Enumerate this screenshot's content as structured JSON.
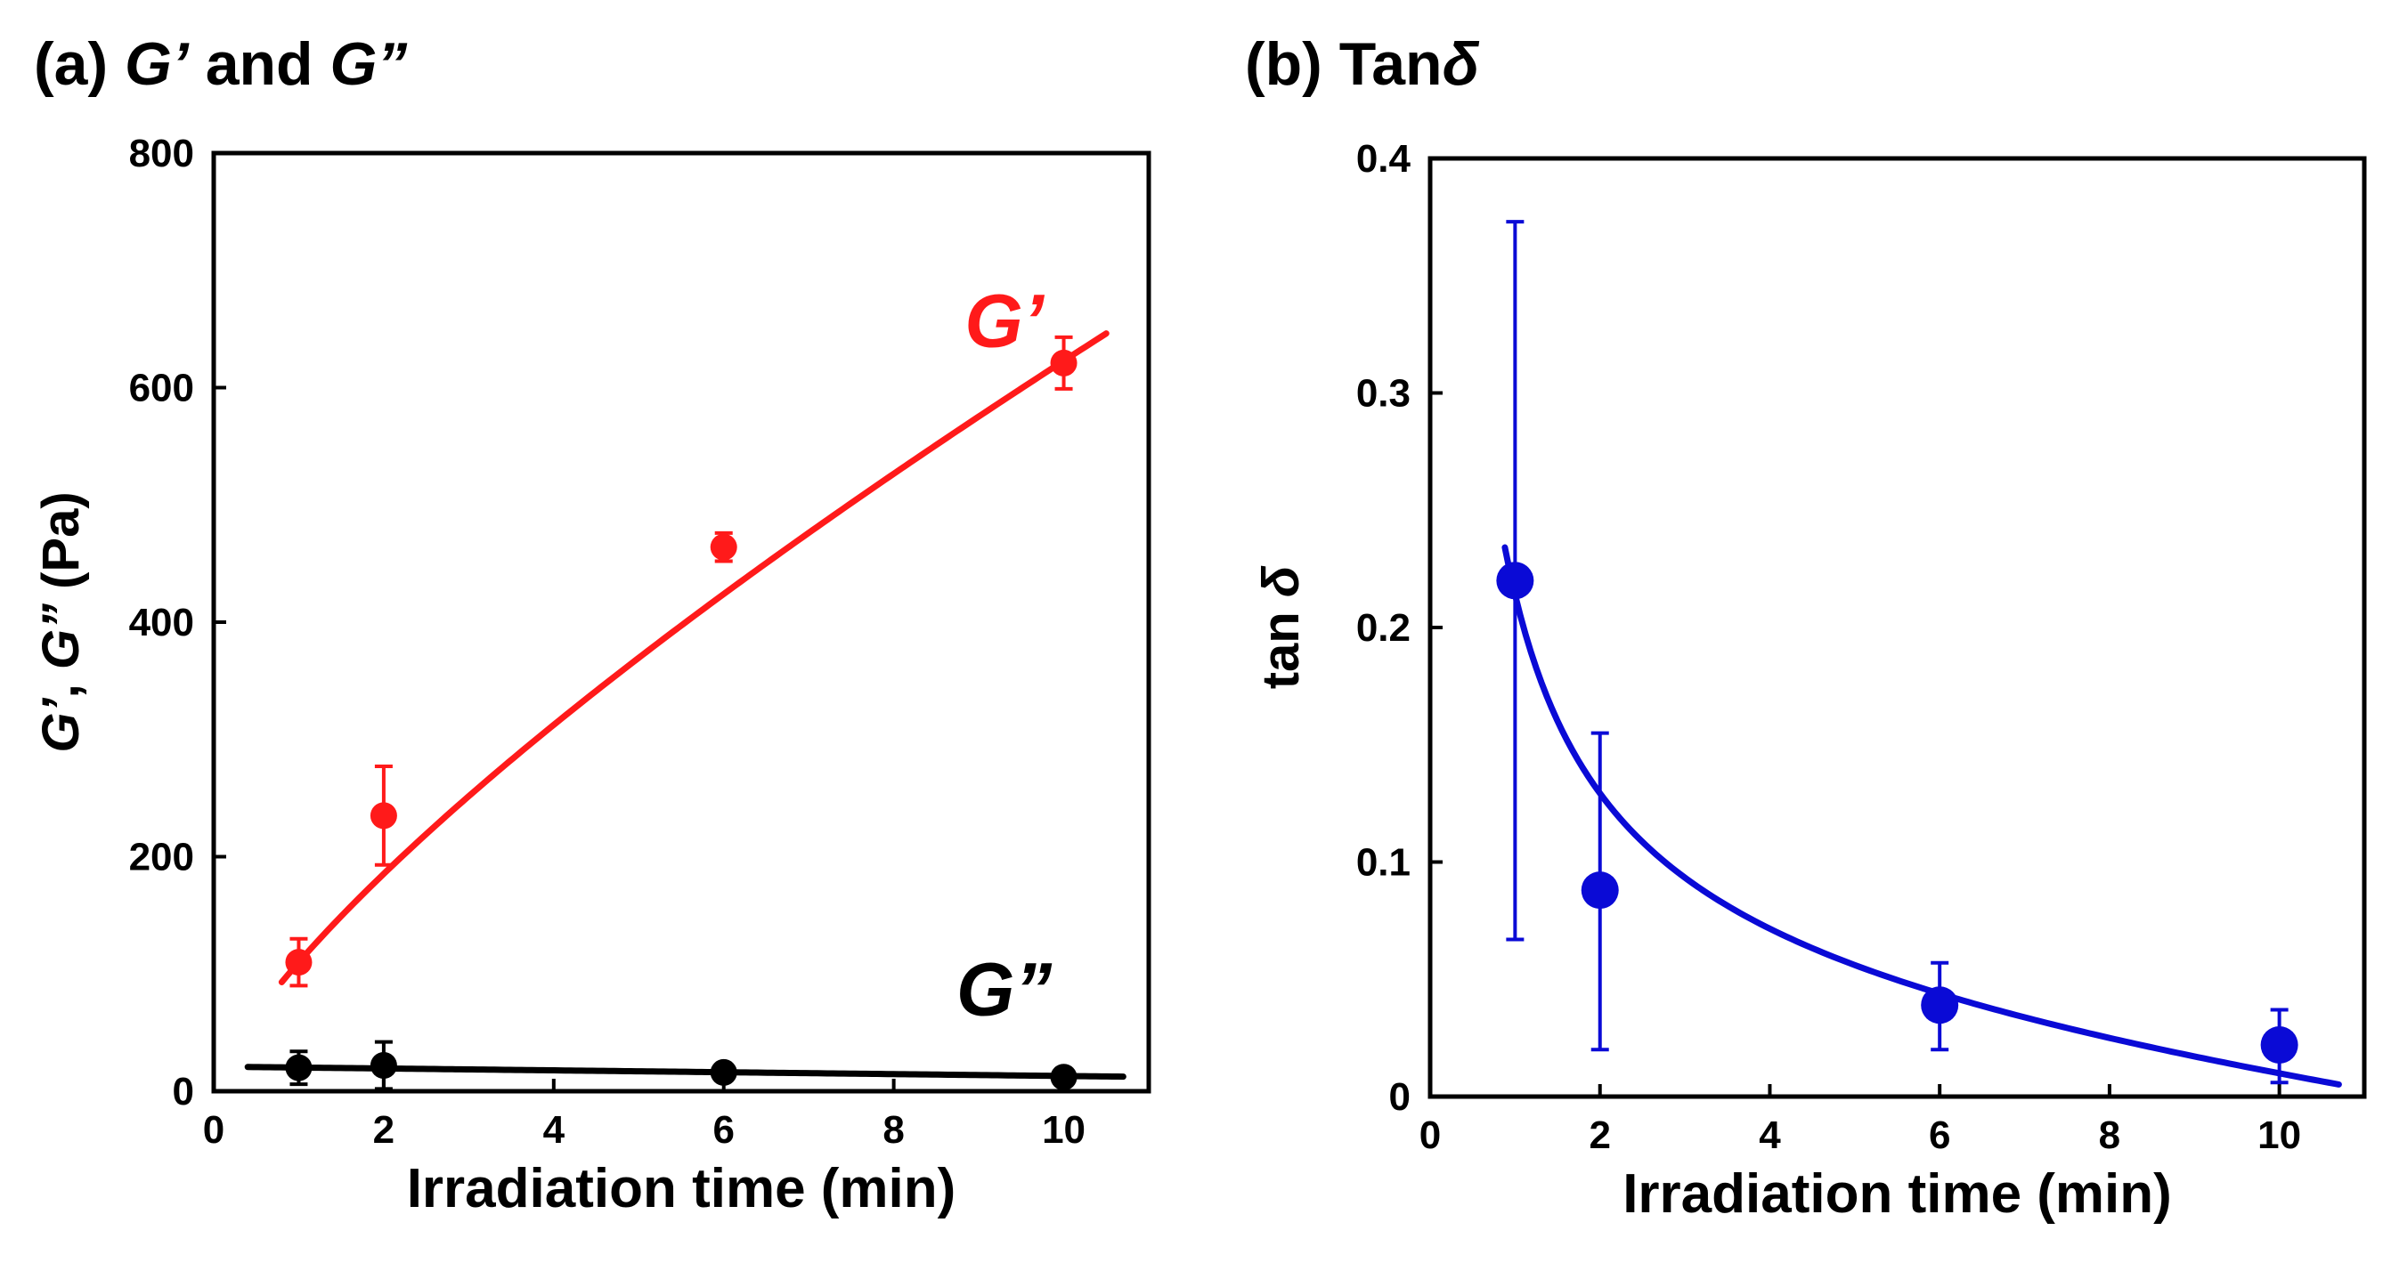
{
  "chart_data": [
    {
      "type": "scatter",
      "panel_label": "(a)",
      "title": "G’ and G”",
      "title_parts": [
        {
          "text": "(a) ",
          "italic": false
        },
        {
          "text": "G’",
          "italic": true
        },
        {
          "text": " and ",
          "italic": false
        },
        {
          "text": "G”",
          "italic": true
        }
      ],
      "xlabel": "Irradiation time (min)",
      "ylabel": "G’, G” (Pa)",
      "ylabel_parts": [
        {
          "text": "G’",
          "italic": true
        },
        {
          "text": ", ",
          "italic": false
        },
        {
          "text": "G”",
          "italic": true
        },
        {
          "text": " (Pa)",
          "italic": false
        }
      ],
      "xlim": [
        0,
        11
      ],
      "ylim": [
        0,
        800
      ],
      "xticks": [
        0,
        2,
        4,
        6,
        8,
        10
      ],
      "yticks": [
        0,
        200,
        400,
        600,
        800
      ],
      "grid": false,
      "series": [
        {
          "name": "G’",
          "color": "#ff1a1a",
          "label_at": [
            9.3,
            635
          ],
          "x": [
            1,
            2,
            6,
            10
          ],
          "y": [
            110,
            235,
            464,
            621
          ],
          "err": [
            20,
            42,
            12,
            22
          ],
          "fit": {
            "model": "power",
            "a": 110,
            "b": 0.753,
            "x_range": [
              0.8,
              10.5
            ]
          }
        },
        {
          "name": "G”",
          "color": "#000000",
          "label_at": [
            9.3,
            65
          ],
          "x": [
            1,
            2,
            6,
            10
          ],
          "y": [
            20,
            22,
            16,
            12
          ],
          "err": [
            14,
            20,
            6,
            5
          ],
          "fit": {
            "model": "linear",
            "a": 21,
            "b": -0.8,
            "x_range": [
              0.4,
              10.7
            ]
          }
        }
      ]
    },
    {
      "type": "scatter",
      "panel_label": "(b)",
      "title": "Tanδ",
      "title_parts": [
        {
          "text": "(b) Tan",
          "italic": false
        },
        {
          "text": "δ",
          "italic": true
        }
      ],
      "xlabel": "Irradiation time (min)",
      "ylabel": "tan δ",
      "ylabel_parts": [
        {
          "text": "tan ",
          "italic": false
        },
        {
          "text": "δ",
          "italic": true
        }
      ],
      "xlim": [
        0,
        11
      ],
      "ylim": [
        0,
        0.4
      ],
      "xticks": [
        0,
        2,
        4,
        6,
        8,
        10
      ],
      "yticks": [
        0,
        0.1,
        0.2,
        0.3,
        0.4
      ],
      "grid": false,
      "series": [
        {
          "name": "tan δ",
          "color": "#0a0ad6",
          "x": [
            1,
            2,
            6,
            10
          ],
          "y": [
            0.22,
            0.088,
            0.039,
            0.022
          ],
          "err_low": [
            0.067,
            0.02,
            0.02,
            0.006
          ],
          "err_high": [
            0.373,
            0.155,
            0.057,
            0.037
          ],
          "fit": {
            "model": "decay",
            "a": 0.008,
            "b": 0.21,
            "c": 0.7,
            "d": 0.004,
            "x_range": [
              0.88,
              10.7
            ]
          }
        }
      ]
    }
  ]
}
